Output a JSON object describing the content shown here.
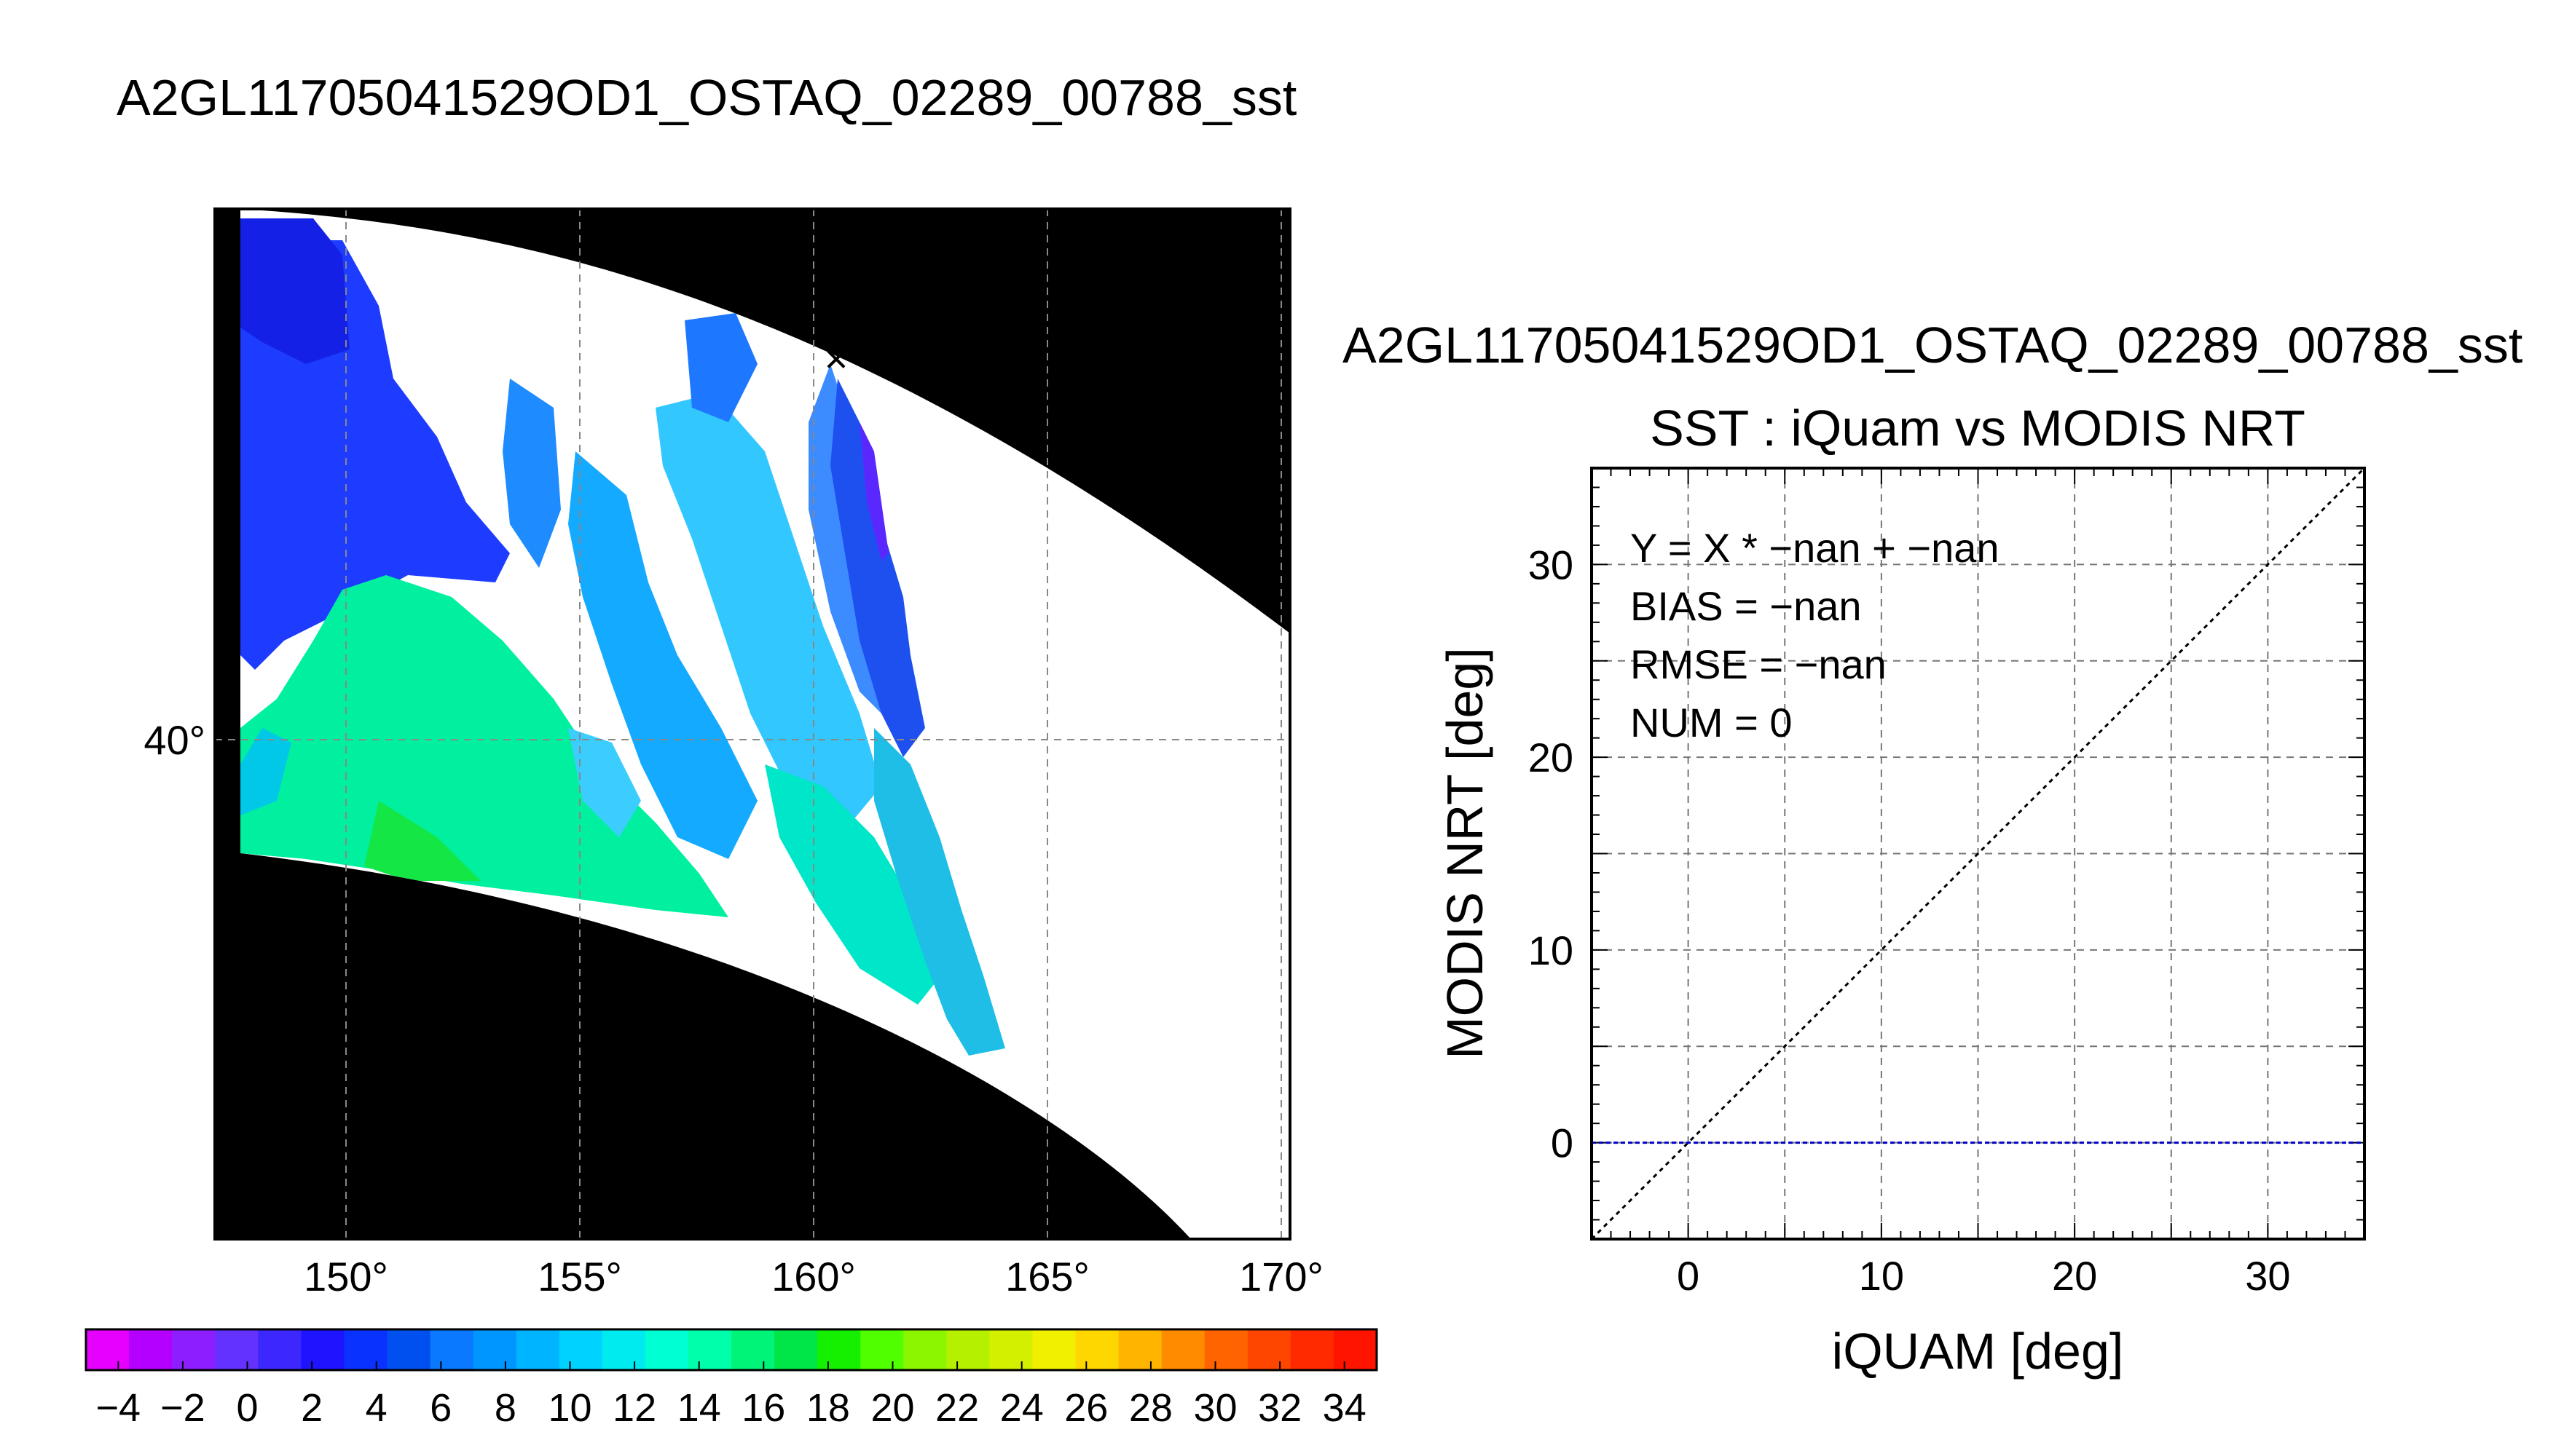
{
  "page_title": "A2GL11705041529OD1_OSTAQ_02289_00788_sst",
  "map": {
    "lon_ticks": [
      150,
      155,
      160,
      165,
      170
    ],
    "lat_ticks": [
      40
    ],
    "degree_symbol": "°",
    "marker_symbol": "×",
    "marker_color": "#ff0000"
  },
  "colorbar": {
    "ticks": [
      -4,
      -2,
      0,
      2,
      4,
      6,
      8,
      10,
      12,
      14,
      16,
      18,
      20,
      22,
      24,
      26,
      28,
      30,
      32,
      34
    ],
    "range": [
      -5,
      35
    ],
    "colors": [
      "#e600ff",
      "#b400ff",
      "#8c1eff",
      "#6432ff",
      "#3c28ff",
      "#1e14ff",
      "#0a32ff",
      "#0050f0",
      "#0a78ff",
      "#0096ff",
      "#00b4ff",
      "#00d2ff",
      "#00ebf0",
      "#00ffd2",
      "#00ffaa",
      "#00f578",
      "#00e646",
      "#14f000",
      "#50ff00",
      "#8cf500",
      "#b4f000",
      "#d2f000",
      "#f0f000",
      "#ffd700",
      "#ffb400",
      "#ff8c00",
      "#ff6400",
      "#ff4600",
      "#ff2a00",
      "#ff1400"
    ]
  },
  "chart_data": {
    "type": "scatter",
    "title": "A2GL11705041529OD1_OSTAQ_02289_00788_sst",
    "subtitle": "SST : iQuam vs MODIS NRT",
    "xlabel": "iQUAM [deg]",
    "ylabel": "MODIS NRT [deg]",
    "xlim": [
      -5,
      35
    ],
    "ylim": [
      -5,
      35
    ],
    "xticks": [
      0,
      10,
      20,
      30
    ],
    "yticks": [
      0,
      10,
      20,
      30
    ],
    "grid": true,
    "points": [],
    "identity_line": {
      "x": [
        -5,
        35
      ],
      "y": [
        -5,
        35
      ],
      "color": "#000000"
    },
    "fit_line": {
      "y": 0,
      "color": "#0000cc"
    },
    "annotations": [
      "Y = X * −nan + −nan",
      "BIAS = −nan",
      "RMSE = −nan",
      "NUM = 0"
    ]
  }
}
